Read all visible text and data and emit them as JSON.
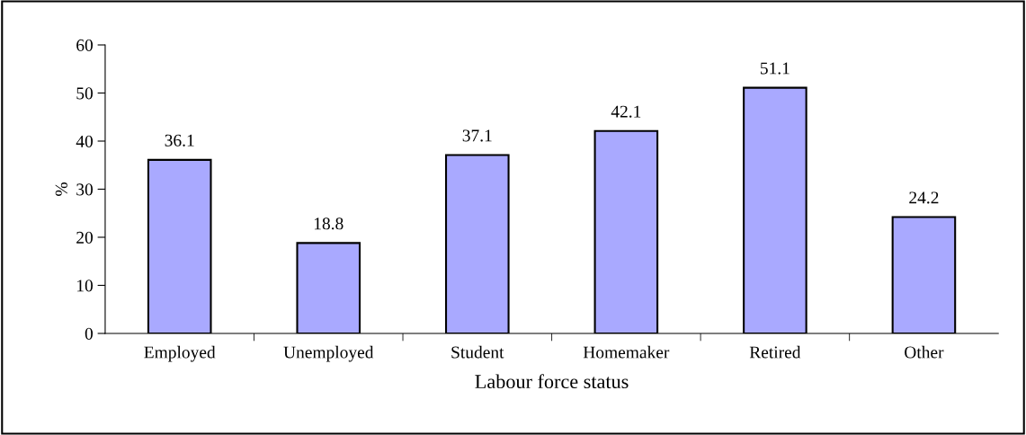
{
  "chart_data": {
    "type": "bar",
    "xlabel": "Labour force status",
    "ylabel": "%",
    "categories": [
      "Employed",
      "Unemployed",
      "Student",
      "Homemaker",
      "Retired",
      "Other"
    ],
    "values": [
      36.1,
      18.8,
      37.1,
      42.1,
      51.1,
      24.2
    ],
    "color": "#a9a9ff",
    "ylim": [
      0,
      60
    ],
    "yticks": [
      0,
      10,
      20,
      30,
      40,
      50,
      60
    ],
    "data_labels": true,
    "grid": false,
    "legend": false
  }
}
